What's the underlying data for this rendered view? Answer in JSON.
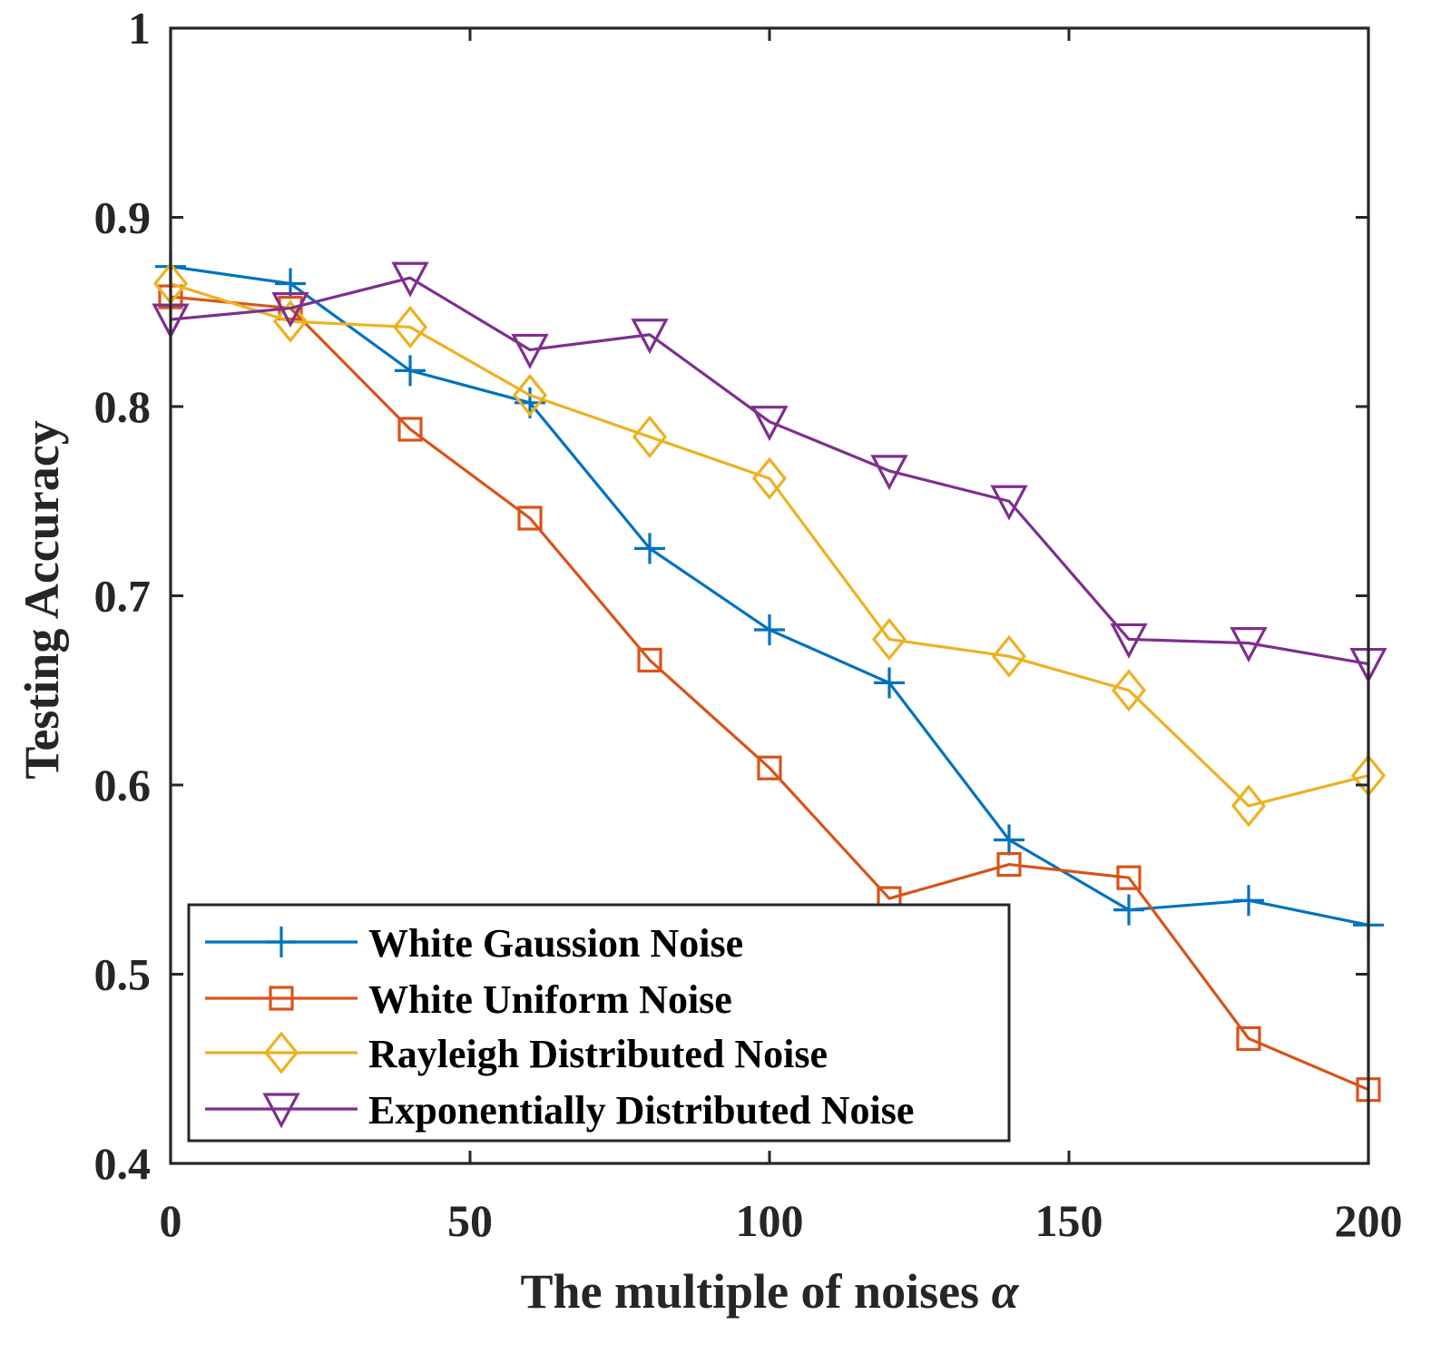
{
  "chart_data": {
    "type": "line",
    "title": "",
    "xlabel_text": "The multiple of noises ",
    "xlabel_symbol": "α",
    "ylabel": "Testing Accuracy",
    "xlim": [
      0,
      200
    ],
    "ylim": [
      0.4,
      1.0
    ],
    "xticks": [
      0,
      50,
      100,
      150,
      200
    ],
    "xtick_labels": [
      "0",
      "50",
      "100",
      "150",
      "200"
    ],
    "yticks": [
      0.4,
      0.5,
      0.6,
      0.7,
      0.8,
      0.9,
      1.0
    ],
    "ytick_labels": [
      "0.4",
      "0.5",
      "0.6",
      "0.7",
      "0.8",
      "0.9",
      "1"
    ],
    "grid": false,
    "legend_position": "bottom-left",
    "x": [
      0,
      20,
      40,
      60,
      80,
      100,
      120,
      140,
      160,
      180,
      200
    ],
    "series": [
      {
        "name": "White Gaussion Noise",
        "color": "#0072BD",
        "marker": "plus",
        "values": [
          0.874,
          0.865,
          0.819,
          0.802,
          0.725,
          0.682,
          0.654,
          0.571,
          0.534,
          0.539,
          0.526
        ]
      },
      {
        "name": "White Uniform Noise",
        "color": "#D95319",
        "marker": "square",
        "values": [
          0.858,
          0.852,
          0.788,
          0.741,
          0.666,
          0.609,
          0.54,
          0.558,
          0.551,
          0.466,
          0.439
        ]
      },
      {
        "name": "Rayleigh Distributed Noise",
        "color": "#EDB120",
        "marker": "diamond",
        "values": [
          0.865,
          0.845,
          0.842,
          0.806,
          0.784,
          0.762,
          0.677,
          0.668,
          0.65,
          0.589,
          0.605
        ]
      },
      {
        "name": "Exponentially Distributed Noise",
        "color": "#7E2F8E",
        "marker": "triangle-down",
        "values": [
          0.846,
          0.852,
          0.868,
          0.83,
          0.838,
          0.792,
          0.766,
          0.75,
          0.677,
          0.675,
          0.664
        ]
      }
    ]
  }
}
